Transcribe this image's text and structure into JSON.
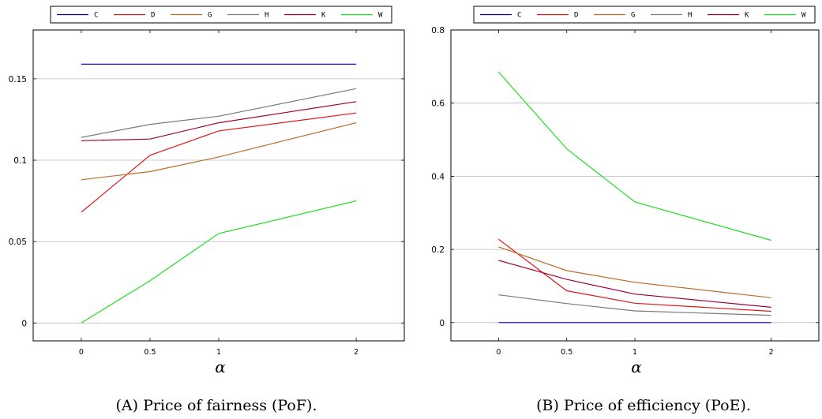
{
  "colors": {
    "C": "#0000b4",
    "D": "#e01818",
    "G": "#b86e2a",
    "H": "#7a7a7a",
    "K": "#a0003c",
    "W": "#22dd22",
    "grid": "#bdbdbd",
    "axis": "#000000"
  },
  "chart_data": [
    {
      "type": "line",
      "xlabel": "α",
      "caption": "(A) Price of fairness (PoF).",
      "x": [
        0,
        0.5,
        1,
        2
      ],
      "x_ticks": [
        "0",
        "0.5",
        "1",
        "2"
      ],
      "ylim": [
        -0.011,
        0.18
      ],
      "y_ticks": [
        0,
        0.05,
        0.1,
        0.15
      ],
      "y_tick_labels": [
        "0",
        "0.05",
        "0.1",
        "0.15"
      ],
      "grid": "horizontal",
      "legend": "top (horizontal, above plot)",
      "series": [
        {
          "name": "C",
          "values": [
            0.159,
            0.159,
            0.159,
            0.159
          ]
        },
        {
          "name": "D",
          "values": [
            0.068,
            0.103,
            0.118,
            0.129
          ]
        },
        {
          "name": "G",
          "values": [
            0.088,
            0.093,
            0.102,
            0.123
          ]
        },
        {
          "name": "H",
          "values": [
            0.114,
            0.122,
            0.127,
            0.144
          ]
        },
        {
          "name": "K",
          "values": [
            0.112,
            0.113,
            0.123,
            0.136
          ]
        },
        {
          "name": "W",
          "values": [
            0.0,
            0.026,
            0.055,
            0.075
          ]
        }
      ]
    },
    {
      "type": "line",
      "xlabel": "α",
      "caption": "(B) Price of efficiency (PoE).",
      "x": [
        0,
        0.5,
        1,
        2
      ],
      "x_ticks": [
        "0",
        "0.5",
        "1",
        "2"
      ],
      "ylim": [
        -0.05,
        0.8
      ],
      "y_ticks": [
        0,
        0.2,
        0.4,
        0.6,
        0.8
      ],
      "y_tick_labels": [
        "0",
        "0.2",
        "0.4",
        "0.6",
        "0.8"
      ],
      "grid": "horizontal",
      "legend": "top (horizontal, above plot)",
      "series": [
        {
          "name": "C",
          "values": [
            0.0,
            0.0,
            0.0,
            0.0
          ]
        },
        {
          "name": "D",
          "values": [
            0.228,
            0.087,
            0.053,
            0.031
          ]
        },
        {
          "name": "G",
          "values": [
            0.207,
            0.142,
            0.11,
            0.068
          ]
        },
        {
          "name": "H",
          "values": [
            0.076,
            0.052,
            0.032,
            0.02
          ]
        },
        {
          "name": "K",
          "values": [
            0.17,
            0.118,
            0.078,
            0.042
          ]
        },
        {
          "name": "W",
          "values": [
            0.685,
            0.475,
            0.33,
            0.225
          ]
        }
      ]
    }
  ]
}
